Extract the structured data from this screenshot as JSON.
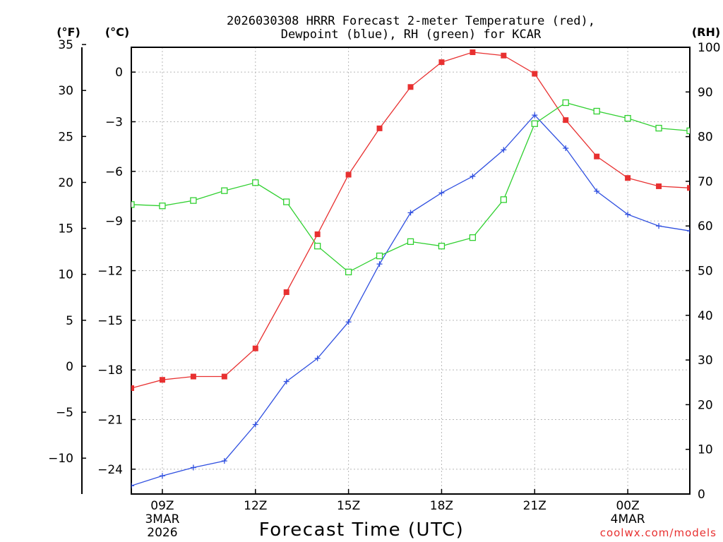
{
  "chart_data": {
    "type": "line",
    "title": {
      "line1": "2026030308 HRRR Forecast 2-meter Temperature (red),",
      "line2": "Dewpoint (blue), RH (green) for KCAR"
    },
    "xlabel": "Forecast Time (UTC)",
    "credit": "coolwx.com/models",
    "unit_labels": {
      "fahrenheit": "(°F)",
      "celsius": "(°C)",
      "rh": "(RH)"
    },
    "x_hours": [
      8,
      9,
      10,
      11,
      12,
      13,
      14,
      15,
      16,
      17,
      18,
      19,
      20,
      21,
      22,
      23,
      24,
      25,
      26
    ],
    "xlim": [
      8,
      26
    ],
    "x_ticks": [
      {
        "hour": 9,
        "label": "09Z",
        "sub1": "3MAR",
        "sub2": "2026"
      },
      {
        "hour": 12,
        "label": "12Z",
        "sub1": "",
        "sub2": ""
      },
      {
        "hour": 15,
        "label": "15Z",
        "sub1": "",
        "sub2": ""
      },
      {
        "hour": 18,
        "label": "18Z",
        "sub1": "",
        "sub2": ""
      },
      {
        "hour": 21,
        "label": "21Z",
        "sub1": "",
        "sub2": ""
      },
      {
        "hour": 24,
        "label": "00Z",
        "sub1": "4MAR",
        "sub2": ""
      }
    ],
    "celsius_axis": {
      "range": [
        -25.5,
        1.5
      ],
      "ticks": [
        "0",
        "−3",
        "−6",
        "−9",
        "−12",
        "−15",
        "−18",
        "−21",
        "−24"
      ],
      "tick_values": [
        0,
        -3,
        -6,
        -9,
        -12,
        -15,
        -18,
        -21,
        -24
      ]
    },
    "fahrenheit_axis": {
      "range": [
        -13.9,
        34.7
      ],
      "ticks": [
        "35",
        "30",
        "25",
        "20",
        "15",
        "10",
        "5",
        "0",
        "−5",
        "−10"
      ],
      "tick_values": [
        35,
        30,
        25,
        20,
        15,
        10,
        5,
        0,
        -5,
        -10
      ]
    },
    "rh_axis": {
      "range": [
        0,
        100
      ],
      "ticks": [
        "100",
        "90",
        "80",
        "70",
        "60",
        "50",
        "40",
        "30",
        "20",
        "10",
        "0"
      ],
      "tick_values": [
        100,
        90,
        80,
        70,
        60,
        50,
        40,
        30,
        20,
        10,
        0
      ]
    },
    "series": [
      {
        "name": "Temperature",
        "axis": "celsius",
        "color": "#e83030",
        "marker": "filled-square",
        "values": [
          -19.1,
          -18.6,
          -18.4,
          -18.4,
          -16.7,
          -13.3,
          -9.8,
          -6.2,
          -3.4,
          -0.9,
          0.6,
          1.2,
          1.0,
          -0.1,
          -2.9,
          -5.1,
          -6.4,
          -6.9,
          -7.0
        ]
      },
      {
        "name": "Dewpoint",
        "axis": "celsius",
        "color": "#3050e0",
        "marker": "plus",
        "values": [
          -25.0,
          -24.4,
          -23.9,
          -23.5,
          -21.3,
          -18.7,
          -17.3,
          -15.1,
          -11.6,
          -8.5,
          -7.3,
          -6.3,
          -4.7,
          -2.6,
          -4.6,
          -7.2,
          -8.6,
          -9.3,
          -9.6
        ]
      },
      {
        "name": "RH",
        "axis": "rh",
        "color": "#30d030",
        "marker": "open-square",
        "values": [
          64.8,
          64.5,
          65.7,
          67.9,
          69.7,
          65.4,
          55.5,
          49.7,
          53.3,
          56.5,
          55.5,
          57.4,
          65.9,
          82.9,
          87.6,
          85.7,
          84.1,
          81.9,
          81.3
        ]
      }
    ],
    "grid": true
  }
}
